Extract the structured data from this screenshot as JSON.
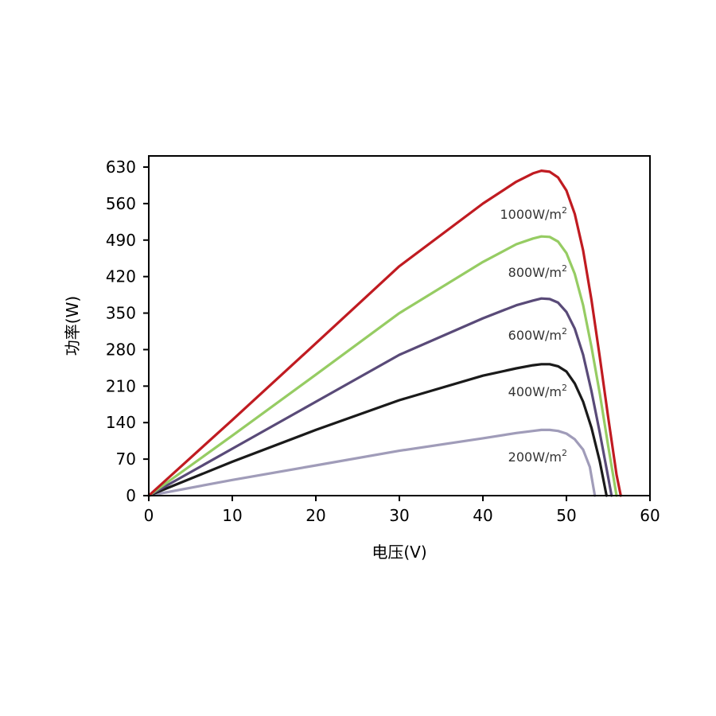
{
  "chart_data": {
    "type": "line",
    "xlabel": "电压(V)",
    "ylabel": "功率(W)",
    "xlim": [
      0,
      60
    ],
    "ylim": [
      0,
      630
    ],
    "xticks": [
      0,
      10,
      20,
      30,
      40,
      50,
      60
    ],
    "yticks": [
      0,
      70,
      140,
      210,
      280,
      350,
      420,
      490,
      560,
      630
    ],
    "grid": false,
    "legend": "none",
    "series": [
      {
        "name": "200W/m²",
        "label_text": "200W/m",
        "label_sup": "2",
        "color": "#a09cb9",
        "points": [
          [
            0,
            0
          ],
          [
            10,
            30
          ],
          [
            20,
            58
          ],
          [
            30,
            86
          ],
          [
            40,
            110
          ],
          [
            44,
            120
          ],
          [
            46,
            124
          ],
          [
            47,
            126
          ],
          [
            48,
            126
          ],
          [
            49,
            124
          ],
          [
            50,
            119
          ],
          [
            51,
            108
          ],
          [
            52,
            88
          ],
          [
            52.8,
            55
          ],
          [
            53.4,
            0
          ]
        ]
      },
      {
        "name": "400W/m²",
        "label_text": "400W/m",
        "label_sup": "2",
        "color": "#1a1a1a",
        "points": [
          [
            0,
            0
          ],
          [
            10,
            65
          ],
          [
            20,
            126
          ],
          [
            30,
            183
          ],
          [
            40,
            230
          ],
          [
            44,
            244
          ],
          [
            46,
            250
          ],
          [
            47,
            252
          ],
          [
            48,
            252
          ],
          [
            49,
            248
          ],
          [
            50,
            238
          ],
          [
            51,
            215
          ],
          [
            52,
            180
          ],
          [
            53,
            130
          ],
          [
            54,
            65
          ],
          [
            54.8,
            0
          ]
        ]
      },
      {
        "name": "600W/m²",
        "label_text": "600W/m",
        "label_sup": "2",
        "color": "#594a78",
        "points": [
          [
            0,
            0
          ],
          [
            10,
            90
          ],
          [
            20,
            180
          ],
          [
            30,
            270
          ],
          [
            40,
            340
          ],
          [
            44,
            365
          ],
          [
            46,
            374
          ],
          [
            47,
            378
          ],
          [
            48,
            377
          ],
          [
            49,
            370
          ],
          [
            50,
            352
          ],
          [
            51,
            320
          ],
          [
            52,
            270
          ],
          [
            53,
            200
          ],
          [
            54,
            120
          ],
          [
            55,
            35
          ],
          [
            55.4,
            0
          ]
        ]
      },
      {
        "name": "800W/m²",
        "label_text": "800W/m",
        "label_sup": "2",
        "color": "#96cc63",
        "points": [
          [
            0,
            0
          ],
          [
            10,
            115
          ],
          [
            20,
            232
          ],
          [
            30,
            350
          ],
          [
            40,
            448
          ],
          [
            44,
            482
          ],
          [
            46,
            493
          ],
          [
            47,
            497
          ],
          [
            48,
            496
          ],
          [
            49,
            487
          ],
          [
            50,
            465
          ],
          [
            51,
            425
          ],
          [
            52,
            365
          ],
          [
            53,
            285
          ],
          [
            54,
            195
          ],
          [
            55,
            95
          ],
          [
            56,
            0
          ]
        ]
      },
      {
        "name": "1000W/m²",
        "label_text": "1000W/m",
        "label_sup": "2",
        "color": "#c01b21",
        "points": [
          [
            0,
            0
          ],
          [
            10,
            145
          ],
          [
            20,
            292
          ],
          [
            30,
            440
          ],
          [
            40,
            560
          ],
          [
            44,
            602
          ],
          [
            46,
            618
          ],
          [
            47,
            623
          ],
          [
            48,
            621
          ],
          [
            49,
            610
          ],
          [
            50,
            585
          ],
          [
            51,
            540
          ],
          [
            52,
            470
          ],
          [
            53,
            375
          ],
          [
            54,
            265
          ],
          [
            55,
            150
          ],
          [
            56,
            40
          ],
          [
            56.5,
            0
          ]
        ]
      }
    ]
  }
}
